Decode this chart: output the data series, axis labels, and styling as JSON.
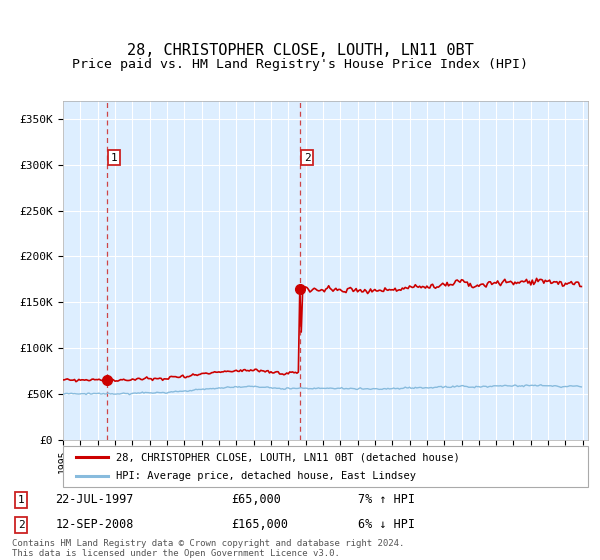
{
  "title": "28, CHRISTOPHER CLOSE, LOUTH, LN11 0BT",
  "subtitle": "Price paid vs. HM Land Registry's House Price Index (HPI)",
  "ylim": [
    0,
    370000
  ],
  "yticks": [
    0,
    50000,
    100000,
    150000,
    200000,
    250000,
    300000,
    350000
  ],
  "ytick_labels": [
    "£0",
    "£50K",
    "£100K",
    "£150K",
    "£200K",
    "£250K",
    "£300K",
    "£350K"
  ],
  "background_color": "#ddeeff",
  "grid_color": "#ffffff",
  "sale1_date": 1997.55,
  "sale1_price": 65000,
  "sale2_date": 2008.7,
  "sale2_price": 165000,
  "line1_color": "#cc0000",
  "line2_color": "#88bbdd",
  "marker_color": "#cc0000",
  "dashed_color": "#cc3333",
  "legend_line1": "28, CHRISTOPHER CLOSE, LOUTH, LN11 0BT (detached house)",
  "legend_line2": "HPI: Average price, detached house, East Lindsey",
  "sale1_label": "1",
  "sale1_text": "22-JUL-1997",
  "sale1_amount": "£65,000",
  "sale1_hpi": "7% ↑ HPI",
  "sale2_label": "2",
  "sale2_text": "12-SEP-2008",
  "sale2_amount": "£165,000",
  "sale2_hpi": "6% ↓ HPI",
  "footer": "Contains HM Land Registry data © Crown copyright and database right 2024.\nThis data is licensed under the Open Government Licence v3.0.",
  "title_fontsize": 11,
  "subtitle_fontsize": 9.5,
  "xstart": 1995,
  "xend": 2025.3
}
